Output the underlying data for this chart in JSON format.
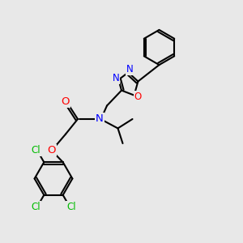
{
  "bg_color": "#e8e8e8",
  "line_color": "#000000",
  "N_color": "#0000ff",
  "O_color": "#ff0000",
  "Cl_color": "#00bb00",
  "bond_lw": 1.5,
  "figsize": [
    3.0,
    3.0
  ],
  "dpi": 100,
  "xlim": [
    0,
    10
  ],
  "ylim": [
    0,
    10
  ]
}
